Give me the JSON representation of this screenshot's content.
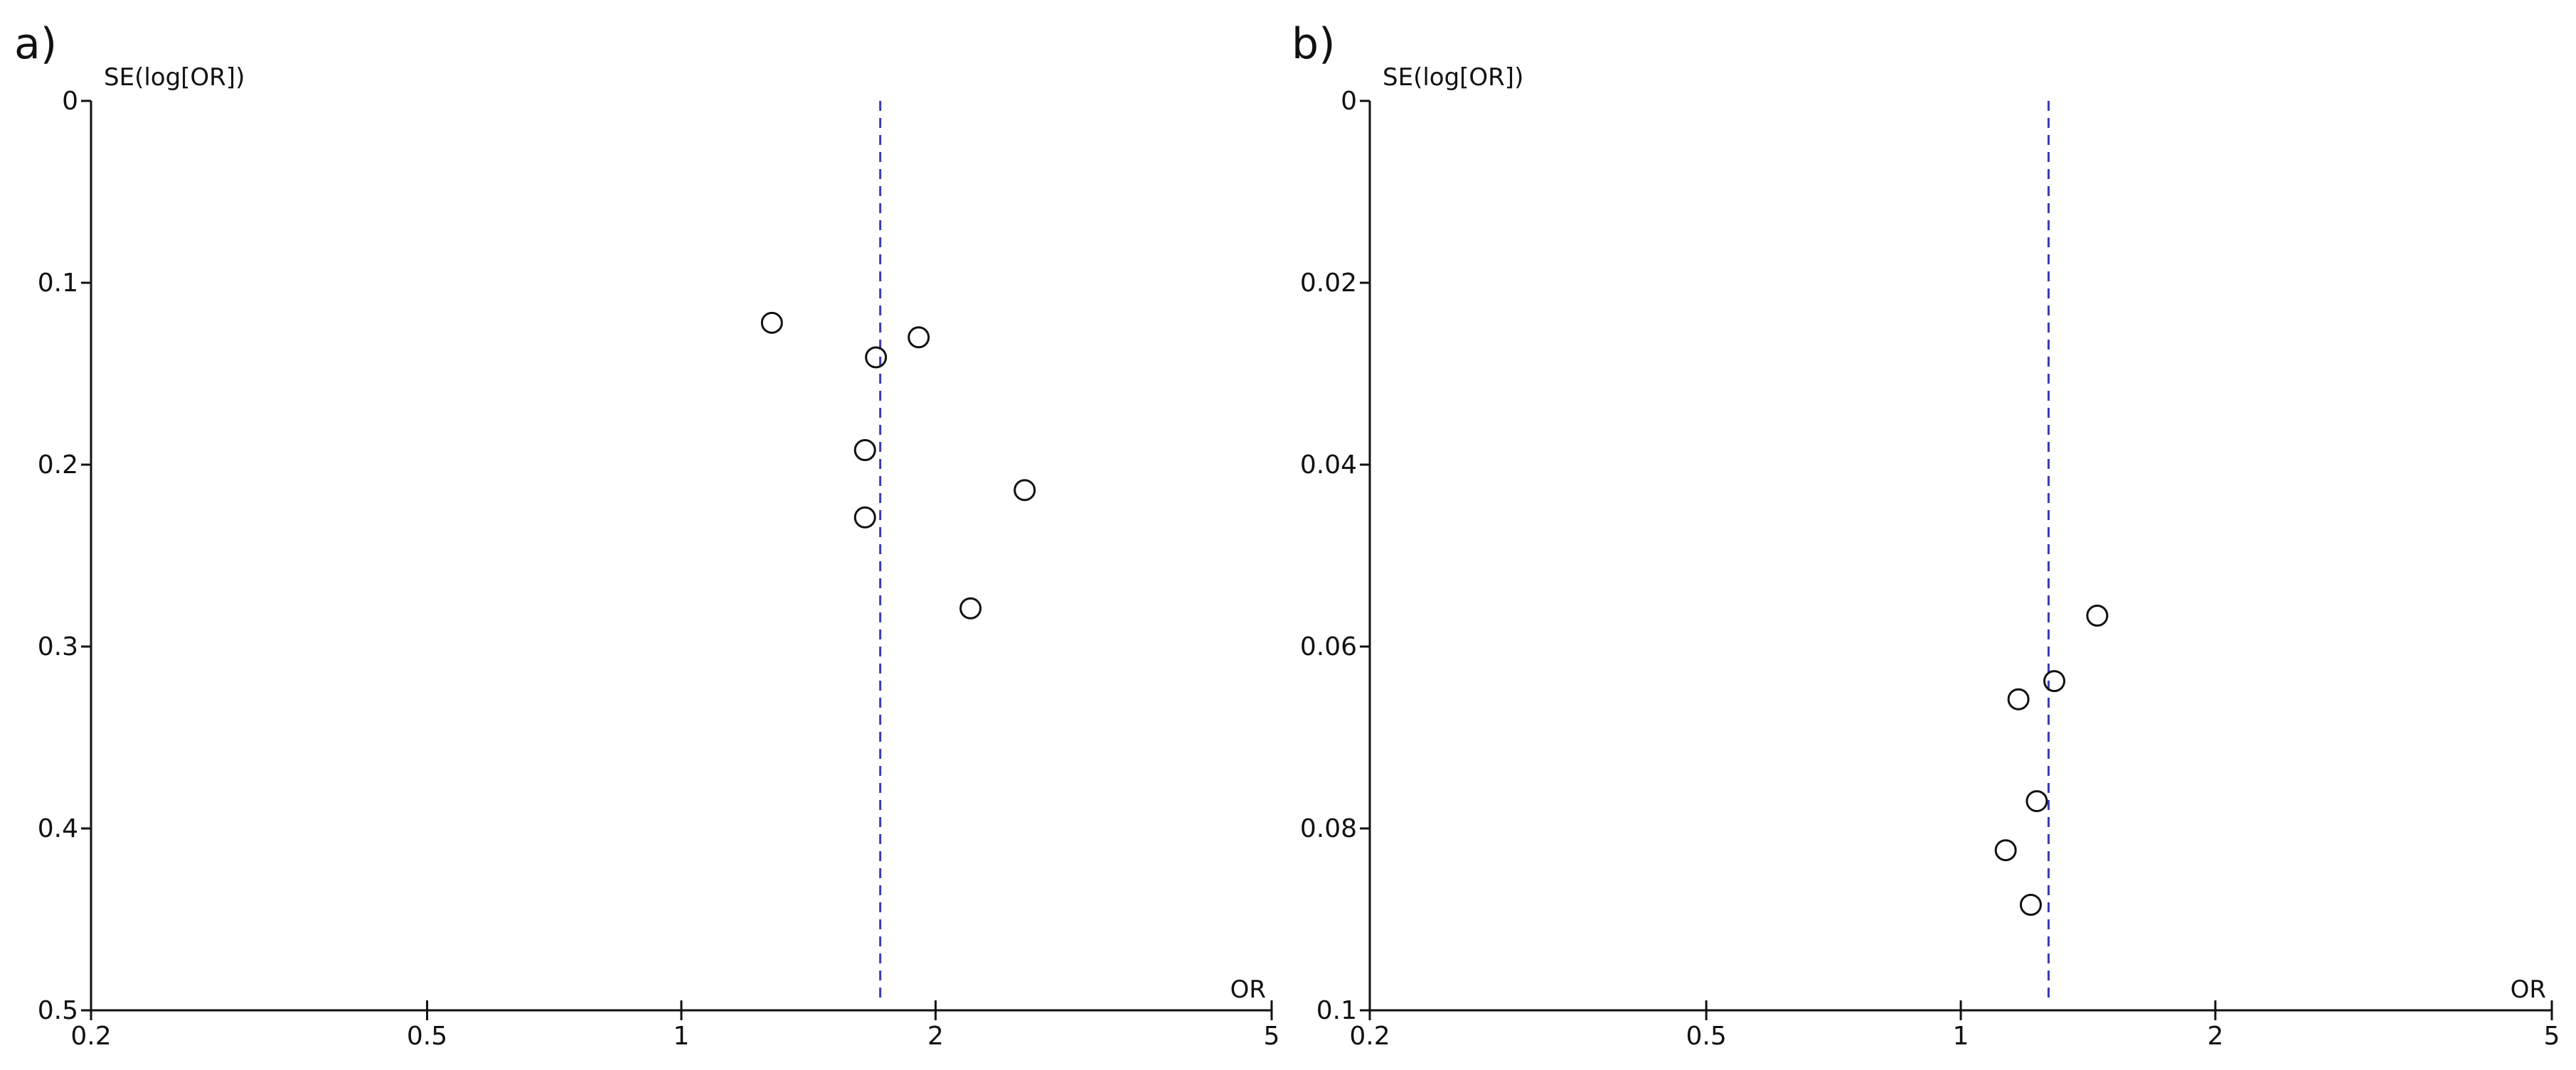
{
  "chart_data": [
    {
      "type": "scatter",
      "panel_label": "a)",
      "ylabel": "SE(log[OR])",
      "xlabel": "OR",
      "x_scale": "log",
      "xlim": [
        0.2,
        5
      ],
      "ylim": [
        0,
        0.5
      ],
      "y_inverted": true,
      "x_ticks": [
        "0.2",
        "0.5",
        "1",
        "2",
        "5"
      ],
      "y_ticks": [
        "0",
        "0.1",
        "0.2",
        "0.3",
        "0.4",
        "0.5"
      ],
      "grid": false,
      "reference_line_or": 1.72,
      "reference_line_color": "#3b3bb0",
      "points": [
        {
          "or": 1.28,
          "se": 0.122
        },
        {
          "or": 1.91,
          "se": 0.13
        },
        {
          "or": 1.7,
          "se": 0.141
        },
        {
          "or": 1.65,
          "se": 0.192
        },
        {
          "or": 2.55,
          "se": 0.214
        },
        {
          "or": 1.65,
          "se": 0.229
        },
        {
          "or": 2.2,
          "se": 0.279
        }
      ]
    },
    {
      "type": "scatter",
      "panel_label": "b)",
      "ylabel": "SE(log[OR])",
      "xlabel": "OR",
      "x_scale": "log",
      "xlim": [
        0.2,
        5
      ],
      "ylim": [
        0,
        0.1
      ],
      "y_inverted": true,
      "x_ticks": [
        "0.2",
        "0.5",
        "1",
        "2",
        "5"
      ],
      "y_ticks": [
        "0",
        "0.02",
        "0.04",
        "0.06",
        "0.08",
        "0.1"
      ],
      "grid": false,
      "reference_line_or": 1.27,
      "reference_line_color": "#3b3bb0",
      "points": [
        {
          "or": 1.45,
          "se": 0.0566
        },
        {
          "or": 1.29,
          "se": 0.0638
        },
        {
          "or": 1.17,
          "se": 0.0658
        },
        {
          "or": 1.23,
          "se": 0.077
        },
        {
          "or": 1.13,
          "se": 0.0824
        },
        {
          "or": 1.21,
          "se": 0.0884
        }
      ]
    }
  ]
}
